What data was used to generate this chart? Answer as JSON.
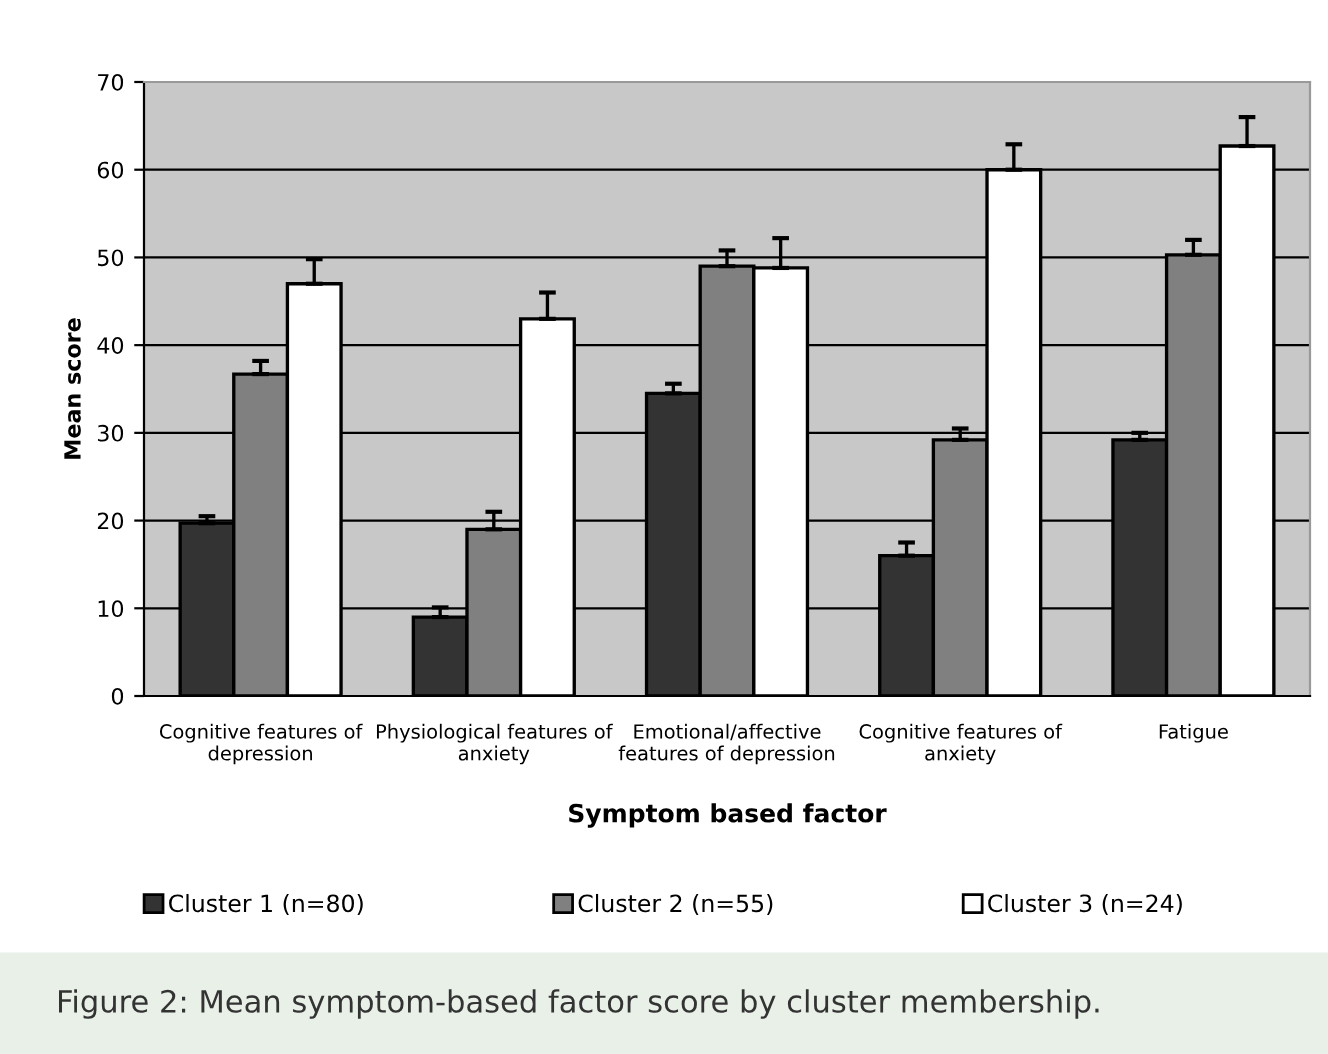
{
  "chart_data": {
    "type": "bar",
    "xlabel": "Symptom based factor",
    "ylabel": "Mean score",
    "categories": [
      "Cognitive features of\ndepression",
      "Physiological features of\nanxiety",
      "Emotional/affective\nfeatures of depression",
      "Cognitive features of\nanxiety",
      "Fatigue"
    ],
    "series": [
      {
        "name": "Cluster 1 (n=80)",
        "color": "#333333",
        "values": [
          19.7,
          9,
          34.5,
          16,
          29.2
        ],
        "errors": [
          [
            19.7,
            20.5
          ],
          [
            9,
            10.1
          ],
          [
            34.5,
            35.6
          ],
          [
            16,
            17.5
          ],
          [
            29.2,
            30
          ]
        ]
      },
      {
        "name": "Cluster 2 (n=55)",
        "color": "#808080",
        "values": [
          36.7,
          19,
          49,
          29.2,
          50.3
        ],
        "errors": [
          [
            36.7,
            38.2
          ],
          [
            19,
            21
          ],
          [
            49,
            50.8
          ],
          [
            29.2,
            30.5
          ],
          [
            50.3,
            52
          ]
        ]
      },
      {
        "name": "Cluster 3 (n=24)",
        "color": "#ffffff",
        "values": [
          47,
          43,
          48.8,
          60,
          62.7
        ],
        "errors": [
          [
            47,
            49.8
          ],
          [
            43,
            46
          ],
          [
            48.8,
            52.2
          ],
          [
            60,
            62.9
          ],
          [
            62.7,
            66
          ]
        ]
      }
    ],
    "ylim": [
      0,
      70
    ],
    "yticks": [
      0,
      10,
      20,
      30,
      40,
      50,
      60,
      70
    ],
    "grid": "y",
    "legend": "bottom",
    "annotations": [
      "Figure 2: Mean symptom-based factor score by cluster membership."
    ]
  }
}
